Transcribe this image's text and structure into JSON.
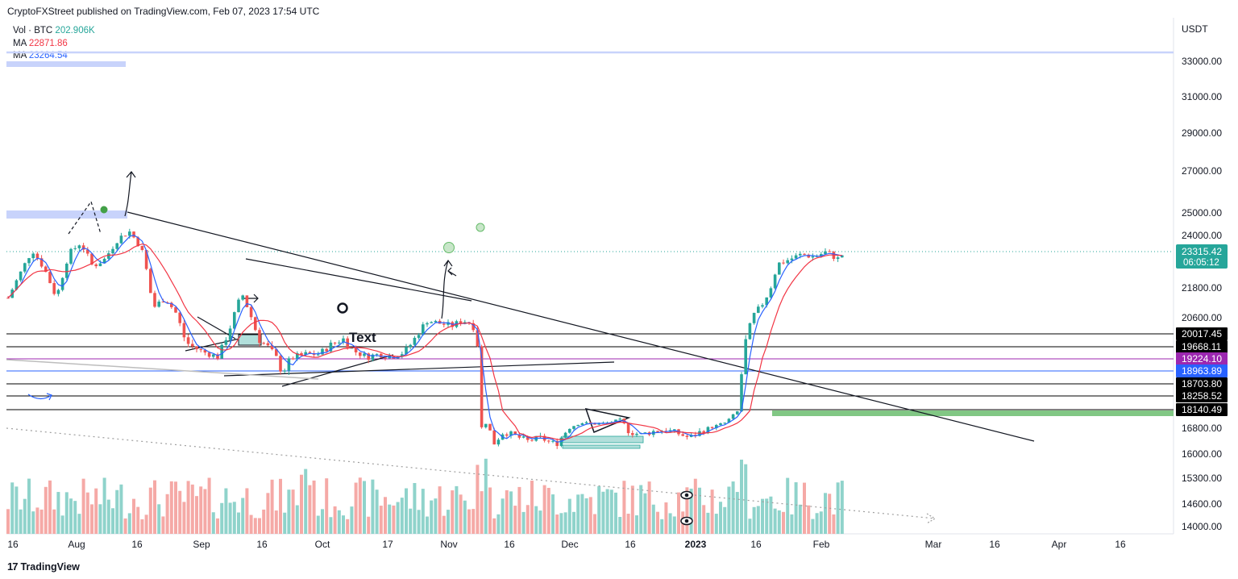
{
  "header": {
    "text": "CryptoFXStreet published on TradingView.com, Feb 07, 2023 17:54 UTC"
  },
  "legend": {
    "vol": {
      "label": "Vol · BTC",
      "value": "202.906K",
      "color": "#26a69a"
    },
    "ma1": {
      "label": "MA",
      "value": "22871.86",
      "color": "#f23645"
    },
    "ma2": {
      "label": "MA",
      "value": "23264.54",
      "color": "#2962ff"
    }
  },
  "footer": {
    "brand": "TradingView",
    "logo_mark": "17"
  },
  "chart_data": {
    "type": "candlestick",
    "currency": "USDT",
    "ylim": [
      13800,
      34500
    ],
    "y_ticks": [
      "33000.00",
      "31000.00",
      "29000.00",
      "27000.00",
      "25000.00",
      "24000.00",
      "21800.00",
      "20600.00",
      "16800.00",
      "16000.00",
      "15300.00",
      "14600.00",
      "14000.00"
    ],
    "x_ticks": [
      "16",
      "Aug",
      "16",
      "Sep",
      "16",
      "Oct",
      "17",
      "Nov",
      "16",
      "Dec",
      "16",
      "2023",
      "16",
      "Feb",
      "Mar",
      "16",
      "Apr",
      "16"
    ],
    "last_price": {
      "value": "23315.42",
      "countdown": "06:05:12",
      "color": "#26a69a"
    },
    "levels": [
      {
        "label": "20017.45",
        "bg": "#000000"
      },
      {
        "label": "19668.11",
        "bg": "#000000"
      },
      {
        "label": "19224.10",
        "bg": "#9c27b0"
      },
      {
        "label": "18963.89",
        "bg": "#2962ff"
      },
      {
        "label": "18703.80",
        "bg": "#000000"
      },
      {
        "label": "18258.52",
        "bg": "#000000"
      },
      {
        "label": "18140.49",
        "bg": "#000000"
      }
    ],
    "annotation_text": "Text",
    "up_color": "#26a69a",
    "down_color": "#ef5350",
    "ma_fast_color": "#2962ff",
    "ma_slow_color": "#f23645"
  }
}
